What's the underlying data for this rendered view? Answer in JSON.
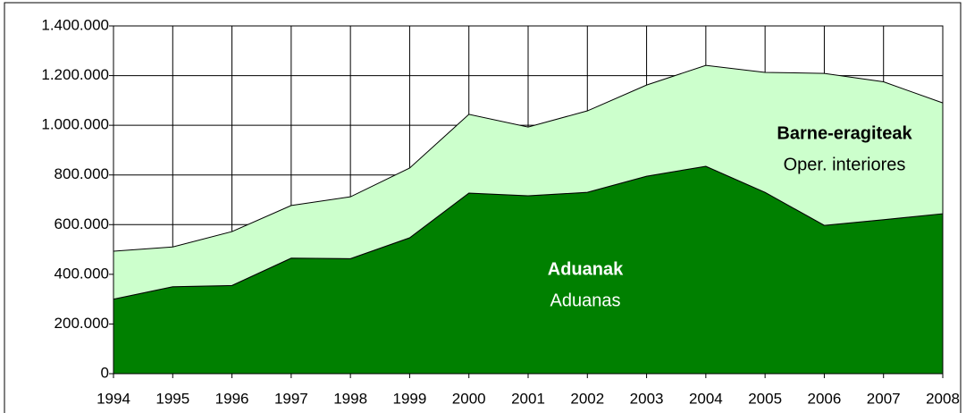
{
  "chart_data": {
    "type": "stacked_area",
    "x": [
      1994,
      1995,
      1996,
      1997,
      1998,
      1999,
      2000,
      2001,
      2002,
      2003,
      2004,
      2005,
      2006,
      2007,
      2008
    ],
    "series": [
      {
        "name": "Aduanak",
        "subname": "Aduanas",
        "color": "#008000",
        "values": [
          300000,
          350000,
          355000,
          465000,
          463000,
          547000,
          727000,
          716000,
          730000,
          795000,
          835000,
          730000,
          597000,
          620000,
          644000
        ]
      },
      {
        "name": "Barne-eragiteak",
        "subname": "Oper. interiores",
        "color": "#ccffcc",
        "values": [
          193000,
          160000,
          217000,
          212000,
          249000,
          281000,
          317000,
          277000,
          328000,
          367000,
          406000,
          483000,
          612000,
          555000,
          446000
        ]
      }
    ],
    "xlim": [
      1994,
      2008
    ],
    "ylim": [
      0,
      1400000
    ],
    "yticks": [
      0,
      {
        "value": 200000,
        "label": "200.000"
      },
      {
        "value": 400000,
        "label": "400.000"
      },
      {
        "value": 600000,
        "label": "600.000"
      },
      {
        "value": 800000,
        "label": "800.000"
      },
      {
        "value": 1000000,
        "label": "1.000.000"
      },
      {
        "value": 1200000,
        "label": "1.200.000"
      },
      {
        "value": 1400000,
        "label": "1.400.000"
      }
    ],
    "grid": true
  }
}
